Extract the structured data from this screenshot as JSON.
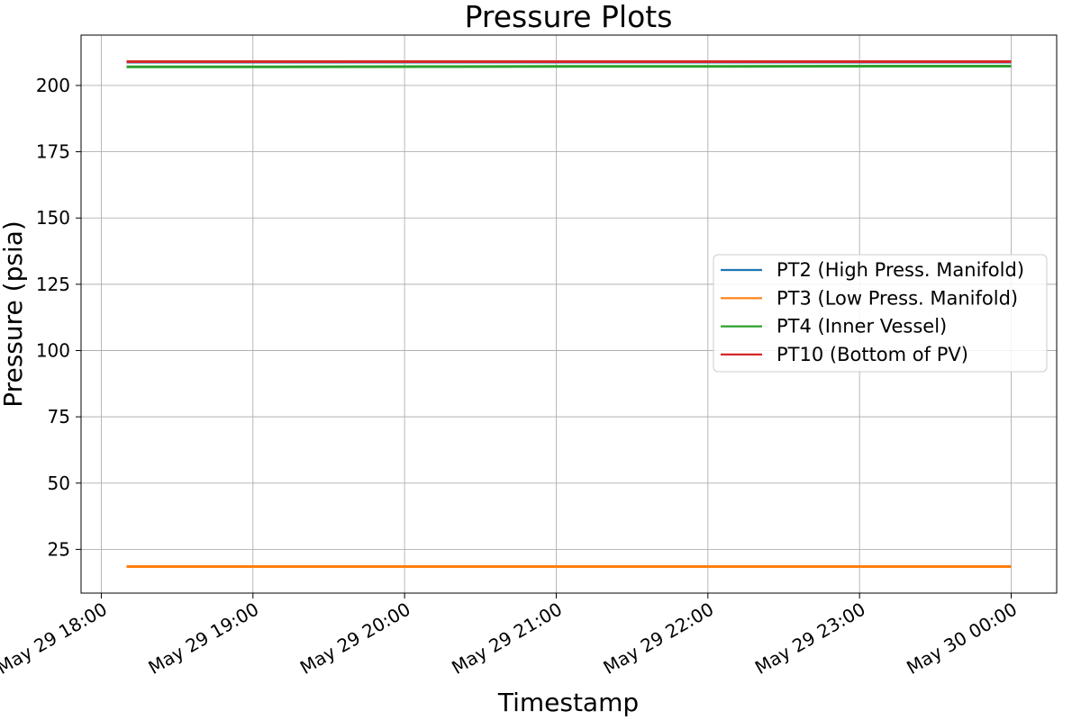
{
  "chart_data": {
    "type": "line",
    "title": "Pressure Plots",
    "xlabel": "Timestamp",
    "ylabel": "Pressure (psia)",
    "x_axis": {
      "type": "time",
      "ticks": [
        {
          "time": "2023-05-29T18:00",
          "label": "May 29 18:00"
        },
        {
          "time": "2023-05-29T19:00",
          "label": "May 29 19:00"
        },
        {
          "time": "2023-05-29T20:00",
          "label": "May 29 20:00"
        },
        {
          "time": "2023-05-29T21:00",
          "label": "May 29 21:00"
        },
        {
          "time": "2023-05-29T22:00",
          "label": "May 29 22:00"
        },
        {
          "time": "2023-05-29T23:00",
          "label": "May 29 23:00"
        },
        {
          "time": "2023-05-30T00:00",
          "label": "May 30 00:00"
        }
      ],
      "xlim": [
        "2023-05-29T17:52",
        "2023-05-30T00:18"
      ]
    },
    "y_axis": {
      "ticks": [
        25,
        50,
        75,
        100,
        125,
        150,
        175,
        200
      ],
      "ylim": [
        8.5,
        219
      ]
    },
    "grid": true,
    "legend_position": "center right",
    "series": [
      {
        "name": "PT2 (High Press. Manifold)",
        "color": "#1f77b4",
        "x": [
          "2023-05-29T18:10",
          "2023-05-30T00:00"
        ],
        "y": [
          208.8,
          208.8
        ]
      },
      {
        "name": "PT3 (Low Press. Manifold)",
        "color": "#ff7f0e",
        "x": [
          "2023-05-29T18:10",
          "2023-05-30T00:00"
        ],
        "y": [
          18.5,
          18.5
        ]
      },
      {
        "name": "PT4 (Inner Vessel)",
        "color": "#2ca02c",
        "x": [
          "2023-05-29T18:10",
          "2023-05-29T19:10",
          "2023-05-29T20:10",
          "2023-05-29T21:10",
          "2023-05-29T22:10",
          "2023-05-29T23:10",
          "2023-05-30T00:00"
        ],
        "y": [
          207.0,
          207.0,
          207.1,
          207.2,
          207.2,
          207.3,
          207.3
        ]
      },
      {
        "name": "PT10 (Bottom of PV)",
        "color": "#d62728",
        "x": [
          "2023-05-29T18:10",
          "2023-05-30T00:00"
        ],
        "y": [
          209.0,
          209.0
        ]
      }
    ]
  }
}
